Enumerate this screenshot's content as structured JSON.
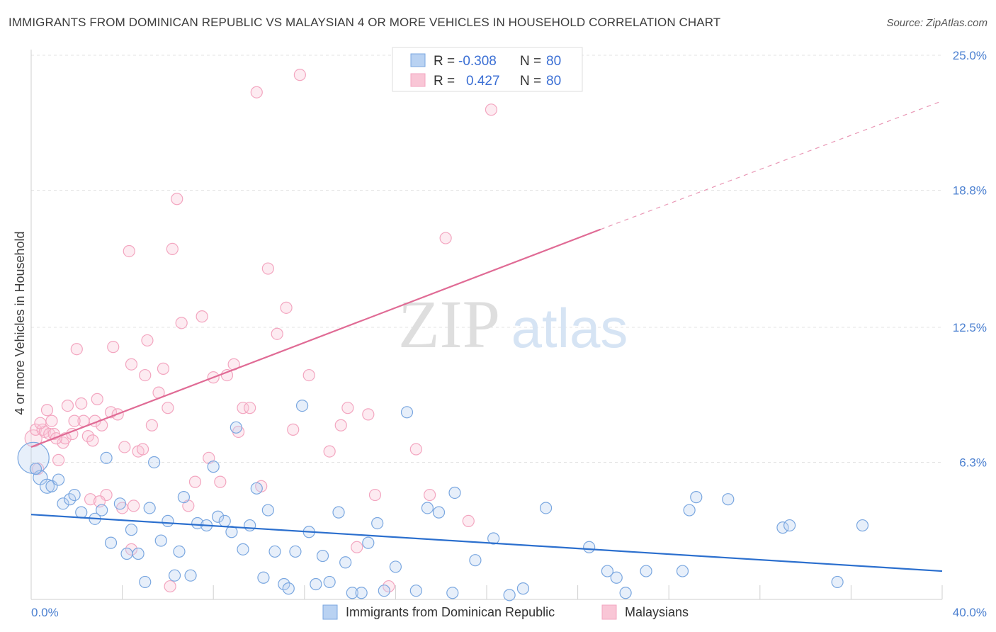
{
  "title": "IMMIGRANTS FROM DOMINICAN REPUBLIC VS MALAYSIAN 4 OR MORE VEHICLES IN HOUSEHOLD CORRELATION CHART",
  "source": "Source: ZipAtlas.com",
  "watermark": {
    "zip": "ZIP",
    "atlas": "atlas"
  },
  "chart_data": {
    "type": "scatter",
    "title": "IMMIGRANTS FROM DOMINICAN REPUBLIC VS MALAYSIAN 4 OR MORE VEHICLES IN HOUSEHOLD CORRELATION CHART",
    "xlabel": "",
    "ylabel": "4 or more Vehicles in Household",
    "xlim": [
      0,
      40
    ],
    "ylim": [
      0,
      25
    ],
    "x_tick_labels": [
      "0.0%",
      "40.0%"
    ],
    "y_ticks": [
      6.3,
      12.5,
      18.8,
      25.0
    ],
    "y_tick_labels": [
      "6.3%",
      "12.5%",
      "18.8%",
      "25.0%"
    ],
    "grid": true,
    "legend_placement": "top-center",
    "legend": [
      {
        "r_label": "R =",
        "r_value": "-0.308",
        "n_label": "N =",
        "n_value": "80"
      },
      {
        "r_label": "R =",
        "r_value": "0.427",
        "n_label": "N =",
        "n_value": "80"
      }
    ],
    "series": [
      {
        "name": "Immigrants from Dominican Republic",
        "color": "#7aa7e0",
        "trend_color": "#2b6fce",
        "trend": {
          "x0": 0,
          "y0": 3.9,
          "x1": 40,
          "y1": 1.3
        },
        "points": [
          [
            0.1,
            6.5,
            22
          ],
          [
            0.4,
            5.6,
            10
          ],
          [
            0.7,
            5.2,
            10
          ],
          [
            0.9,
            5.2,
            8
          ],
          [
            1.2,
            5.5,
            8
          ],
          [
            1.4,
            4.4,
            8
          ],
          [
            1.7,
            4.6,
            8
          ],
          [
            1.9,
            4.8,
            8
          ],
          [
            2.2,
            4.0,
            8
          ],
          [
            2.8,
            3.7,
            8
          ],
          [
            3.1,
            4.1,
            8
          ],
          [
            3.3,
            6.5,
            8
          ],
          [
            3.5,
            2.6,
            8
          ],
          [
            3.9,
            4.4,
            8
          ],
          [
            4.2,
            2.1,
            8
          ],
          [
            4.4,
            3.2,
            8
          ],
          [
            4.7,
            2.1,
            8
          ],
          [
            5.0,
            0.8,
            8
          ],
          [
            5.2,
            4.2,
            8
          ],
          [
            5.4,
            6.3,
            8
          ],
          [
            5.7,
            2.7,
            8
          ],
          [
            6.0,
            3.6,
            8
          ],
          [
            6.3,
            1.1,
            8
          ],
          [
            6.5,
            2.2,
            8
          ],
          [
            6.7,
            4.7,
            8
          ],
          [
            7.0,
            1.1,
            8
          ],
          [
            7.3,
            3.5,
            8
          ],
          [
            7.7,
            3.4,
            8
          ],
          [
            8.0,
            6.1,
            8
          ],
          [
            8.2,
            3.8,
            8
          ],
          [
            8.5,
            3.6,
            8
          ],
          [
            8.8,
            3.1,
            8
          ],
          [
            9.0,
            7.9,
            8
          ],
          [
            9.3,
            2.3,
            8
          ],
          [
            9.6,
            3.4,
            8
          ],
          [
            9.9,
            5.1,
            8
          ],
          [
            10.2,
            1.0,
            8
          ],
          [
            10.4,
            4.1,
            8
          ],
          [
            10.7,
            2.2,
            8
          ],
          [
            11.1,
            0.7,
            8
          ],
          [
            11.3,
            0.5,
            8
          ],
          [
            11.6,
            2.2,
            8
          ],
          [
            11.9,
            8.9,
            8
          ],
          [
            12.2,
            3.1,
            8
          ],
          [
            12.5,
            0.7,
            8
          ],
          [
            12.8,
            2.0,
            8
          ],
          [
            13.1,
            0.8,
            8
          ],
          [
            13.5,
            4.0,
            8
          ],
          [
            13.8,
            1.7,
            8
          ],
          [
            14.1,
            0.3,
            8
          ],
          [
            14.5,
            0.3,
            8
          ],
          [
            14.8,
            2.6,
            8
          ],
          [
            15.2,
            3.5,
            8
          ],
          [
            15.5,
            0.4,
            8
          ],
          [
            16.0,
            1.5,
            8
          ],
          [
            16.5,
            8.6,
            8
          ],
          [
            16.9,
            0.4,
            8
          ],
          [
            17.4,
            4.2,
            8
          ],
          [
            17.9,
            4.0,
            8
          ],
          [
            18.5,
            0.3,
            8
          ],
          [
            18.6,
            4.9,
            8
          ],
          [
            19.5,
            1.8,
            8
          ],
          [
            20.3,
            2.8,
            8
          ],
          [
            21.0,
            0.2,
            8
          ],
          [
            21.6,
            0.5,
            8
          ],
          [
            22.6,
            4.2,
            8
          ],
          [
            24.5,
            2.4,
            8
          ],
          [
            25.3,
            1.3,
            8
          ],
          [
            25.7,
            1.0,
            8
          ],
          [
            26.1,
            0.3,
            8
          ],
          [
            27.0,
            1.3,
            8
          ],
          [
            28.6,
            1.3,
            8
          ],
          [
            28.9,
            4.1,
            8
          ],
          [
            29.2,
            4.7,
            8
          ],
          [
            30.6,
            4.6,
            8
          ],
          [
            33.0,
            3.3,
            8
          ],
          [
            33.3,
            3.4,
            8
          ],
          [
            35.4,
            0.8,
            8
          ],
          [
            36.5,
            3.4,
            8
          ],
          [
            0.2,
            6.0,
            8
          ]
        ]
      },
      {
        "name": "Malaysians",
        "color": "#f3a6c0",
        "trend_color": "#e06b95",
        "trend": {
          "x0": 0,
          "y0": 7.0,
          "x1": 25,
          "y1": 17.0
        },
        "trend_dashed": {
          "x0": 25,
          "y0": 17.0,
          "x1": 40,
          "y1": 22.9
        },
        "points": [
          [
            0.1,
            7.4,
            12
          ],
          [
            0.2,
            7.8,
            8
          ],
          [
            0.3,
            6.0,
            8
          ],
          [
            0.5,
            7.8,
            8
          ],
          [
            0.6,
            7.7,
            8
          ],
          [
            0.7,
            8.7,
            8
          ],
          [
            0.8,
            7.6,
            8
          ],
          [
            0.9,
            8.2,
            8
          ],
          [
            1.0,
            7.6,
            8
          ],
          [
            1.2,
            6.4,
            8
          ],
          [
            1.4,
            7.2,
            8
          ],
          [
            1.5,
            7.4,
            8
          ],
          [
            1.6,
            8.9,
            8
          ],
          [
            1.8,
            7.6,
            8
          ],
          [
            2.0,
            11.5,
            8
          ],
          [
            2.2,
            9.0,
            8
          ],
          [
            2.3,
            8.2,
            8
          ],
          [
            2.5,
            7.5,
            8
          ],
          [
            2.6,
            4.6,
            8
          ],
          [
            2.8,
            8.2,
            8
          ],
          [
            2.9,
            9.2,
            8
          ],
          [
            3.1,
            8.0,
            8
          ],
          [
            3.3,
            4.8,
            8
          ],
          [
            3.5,
            8.6,
            8
          ],
          [
            3.6,
            11.6,
            8
          ],
          [
            3.8,
            8.5,
            8
          ],
          [
            4.0,
            4.2,
            8
          ],
          [
            4.1,
            7.0,
            8
          ],
          [
            4.3,
            16.0,
            8
          ],
          [
            4.4,
            10.8,
            8
          ],
          [
            4.5,
            4.3,
            8
          ],
          [
            4.7,
            6.8,
            8
          ],
          [
            4.9,
            6.9,
            8
          ],
          [
            5.0,
            10.3,
            8
          ],
          [
            5.1,
            11.9,
            8
          ],
          [
            5.3,
            8.0,
            8
          ],
          [
            5.6,
            9.5,
            8
          ],
          [
            5.8,
            10.6,
            8
          ],
          [
            6.0,
            8.8,
            8
          ],
          [
            6.2,
            16.1,
            8
          ],
          [
            6.4,
            18.4,
            8
          ],
          [
            6.6,
            12.7,
            8
          ],
          [
            6.9,
            4.3,
            8
          ],
          [
            7.2,
            5.4,
            8
          ],
          [
            7.5,
            13.0,
            8
          ],
          [
            7.8,
            6.5,
            8
          ],
          [
            8.0,
            10.2,
            8
          ],
          [
            8.3,
            5.4,
            8
          ],
          [
            8.6,
            10.3,
            8
          ],
          [
            8.9,
            10.8,
            8
          ],
          [
            9.1,
            7.7,
            8
          ],
          [
            9.3,
            8.8,
            8
          ],
          [
            9.6,
            8.8,
            8
          ],
          [
            9.9,
            23.3,
            8
          ],
          [
            10.1,
            5.2,
            8
          ],
          [
            10.4,
            15.2,
            8
          ],
          [
            10.8,
            12.2,
            8
          ],
          [
            11.2,
            13.4,
            8
          ],
          [
            11.5,
            7.8,
            8
          ],
          [
            11.8,
            24.1,
            8
          ],
          [
            12.2,
            10.3,
            8
          ],
          [
            13.1,
            6.8,
            8
          ],
          [
            13.6,
            8.0,
            8
          ],
          [
            13.9,
            8.8,
            8
          ],
          [
            14.3,
            2.4,
            8
          ],
          [
            14.8,
            8.5,
            8
          ],
          [
            15.1,
            4.8,
            8
          ],
          [
            15.7,
            0.6,
            8
          ],
          [
            16.9,
            6.9,
            8
          ],
          [
            17.5,
            4.8,
            8
          ],
          [
            18.2,
            16.6,
            8
          ],
          [
            19.2,
            3.6,
            8
          ],
          [
            20.2,
            22.5,
            8
          ],
          [
            6.1,
            0.6,
            8
          ],
          [
            4.4,
            2.3,
            8
          ],
          [
            3.0,
            4.5,
            8
          ],
          [
            1.9,
            8.2,
            8
          ],
          [
            1.1,
            7.4,
            8
          ],
          [
            0.4,
            8.1,
            8
          ],
          [
            2.7,
            7.3,
            8
          ]
        ]
      }
    ]
  }
}
